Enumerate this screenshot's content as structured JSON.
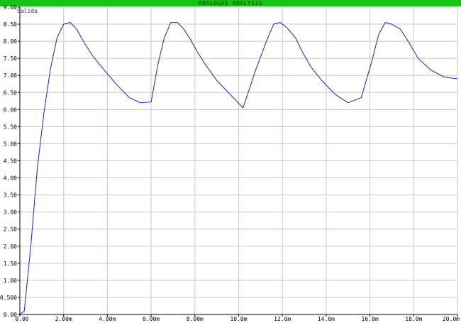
{
  "window": {
    "title": "ANALOGUE ANALYSIS"
  },
  "chart_data": {
    "type": "line",
    "title": "",
    "xlabel": "",
    "ylabel": "",
    "xlim": [
      0,
      20.0
    ],
    "ylim": [
      0,
      9.0
    ],
    "grid": true,
    "legend": "top-left",
    "colors": {
      "series": "#2020c0",
      "grid": "#c8c8c8",
      "axis": "#000000",
      "title_bar": "#19c219"
    },
    "x_ticks": [
      {
        "value": 0,
        "label": "0.00"
      },
      {
        "value": 2,
        "label": "2.00m"
      },
      {
        "value": 4,
        "label": "4.00m"
      },
      {
        "value": 6,
        "label": "6.00m"
      },
      {
        "value": 8,
        "label": "8.00m"
      },
      {
        "value": 10,
        "label": "10.0m"
      },
      {
        "value": 12,
        "label": "12.0m"
      },
      {
        "value": 14,
        "label": "14.0m"
      },
      {
        "value": 16,
        "label": "16.0m"
      },
      {
        "value": 18,
        "label": "18.0m"
      },
      {
        "value": 20,
        "label": "20.0m"
      }
    ],
    "y_ticks": [
      {
        "value": 0.0,
        "label": "0.00"
      },
      {
        "value": 0.5,
        "label": "0.500"
      },
      {
        "value": 1.0,
        "label": "1.00"
      },
      {
        "value": 1.5,
        "label": "1.50"
      },
      {
        "value": 2.0,
        "label": "2.00"
      },
      {
        "value": 2.5,
        "label": "2.50"
      },
      {
        "value": 3.0,
        "label": "3.00"
      },
      {
        "value": 3.5,
        "label": "3.50"
      },
      {
        "value": 4.0,
        "label": "4.00"
      },
      {
        "value": 4.5,
        "label": "4.50"
      },
      {
        "value": 5.0,
        "label": "5.00"
      },
      {
        "value": 5.5,
        "label": "5.50"
      },
      {
        "value": 6.0,
        "label": "6.00"
      },
      {
        "value": 6.5,
        "label": "6.50"
      },
      {
        "value": 7.0,
        "label": "7.00"
      },
      {
        "value": 7.5,
        "label": "7.50"
      },
      {
        "value": 8.0,
        "label": "8.00"
      },
      {
        "value": 8.5,
        "label": "8.50"
      },
      {
        "value": 9.0,
        "label": "9.00"
      }
    ],
    "series": [
      {
        "name": "Salida",
        "x": [
          0,
          0.2,
          0.5,
          0.8,
          1.1,
          1.4,
          1.7,
          2.0,
          2.3,
          2.6,
          2.9,
          3.3,
          3.8,
          4.4,
          5.0,
          5.5,
          6.0,
          6.3,
          6.6,
          6.9,
          7.2,
          7.5,
          7.8,
          8.1,
          8.5,
          9.0,
          9.6,
          10.2,
          10.8,
          11.3,
          11.6,
          11.9,
          12.2,
          12.6,
          12.9,
          13.3,
          13.8,
          14.4,
          15.0,
          15.6,
          16.1,
          16.4,
          16.7,
          17.0,
          17.4,
          17.8,
          18.2,
          18.8,
          19.4,
          20.0
        ],
        "y": [
          0,
          0.1,
          2.0,
          4.3,
          5.9,
          7.2,
          8.1,
          8.5,
          8.55,
          8.35,
          8.0,
          7.6,
          7.2,
          6.75,
          6.35,
          6.2,
          6.22,
          7.3,
          8.1,
          8.55,
          8.55,
          8.35,
          8.05,
          7.7,
          7.3,
          6.85,
          6.45,
          6.05,
          7.2,
          8.05,
          8.5,
          8.55,
          8.4,
          8.1,
          7.7,
          7.25,
          6.85,
          6.45,
          6.2,
          6.35,
          7.45,
          8.2,
          8.55,
          8.5,
          8.35,
          7.95,
          7.5,
          7.15,
          6.95,
          6.9
        ]
      }
    ]
  }
}
